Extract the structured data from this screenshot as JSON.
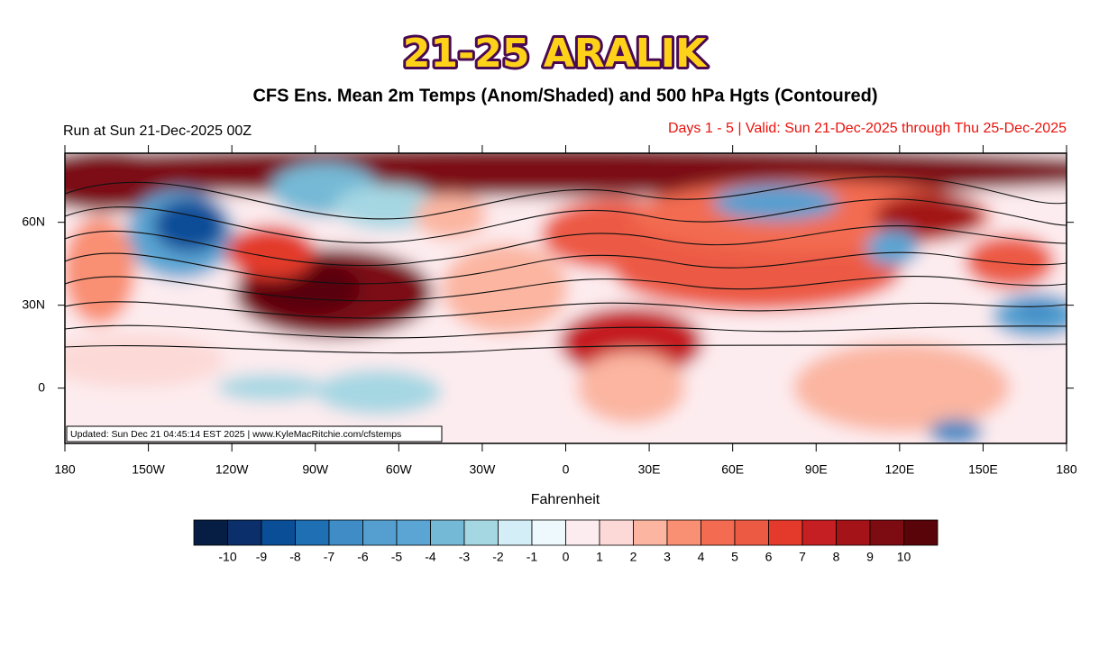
{
  "title": "21-25 ARALIK",
  "subtitle": "CFS Ens. Mean 2m Temps (Anom/Shaded) and 500 hPa Hgts (Contoured)",
  "run_label": "Run at Sun 21-Dec-2025 00Z",
  "valid_label": "Days 1 - 5 | Valid: Sun 21-Dec-2025 through Thu 25-Dec-2025",
  "updated_label": "Updated: Sun Dec 21 04:45:14 EST 2025 | www.KyleMacRitchie.com/cfstemps",
  "map": {
    "xlim": [
      -180,
      180
    ],
    "ylim": [
      -20,
      85
    ],
    "yticks": [
      {
        "value": 60,
        "label": "60N"
      },
      {
        "value": 30,
        "label": "30N"
      },
      0
    ],
    "xticks": [
      {
        "value": -180,
        "label": "180"
      },
      {
        "value": -150,
        "label": "150W"
      },
      {
        "value": -120,
        "label": "120W"
      },
      {
        "value": -90,
        "label": "90W"
      },
      {
        "value": -60,
        "label": "60W"
      },
      {
        "value": -30,
        "label": "30W"
      },
      0,
      {
        "value": 30,
        "label": "30E"
      },
      {
        "value": 60,
        "label": "60E"
      },
      {
        "value": 90,
        "label": "90E"
      },
      {
        "value": 120,
        "label": "120E"
      },
      {
        "value": 150,
        "label": "150E"
      },
      {
        "value": 180,
        "label": "180"
      }
    ]
  },
  "colorbar": {
    "label": "Fahrenheit",
    "levels": [
      -10,
      -9,
      -8,
      -7,
      -6,
      -5,
      -4,
      -3,
      -2,
      -1,
      0,
      1,
      2,
      3,
      4,
      5,
      6,
      7,
      8,
      9,
      10
    ],
    "colors": [
      "#061e44",
      "#0b2f6b",
      "#0a4e98",
      "#1f6fb4",
      "#3f8cc6",
      "#559fd0",
      "#5aa5d3",
      "#74b9d6",
      "#a5d7e3",
      "#d3eef7",
      "#edf9fd",
      "#fdecef",
      "#fcd9d6",
      "#fbb5a0",
      "#f98f73",
      "#f36c51",
      "#ec5a44",
      "#e33a2c",
      "#c51f23",
      "#a31318",
      "#7c0b12",
      "#590408"
    ]
  }
}
